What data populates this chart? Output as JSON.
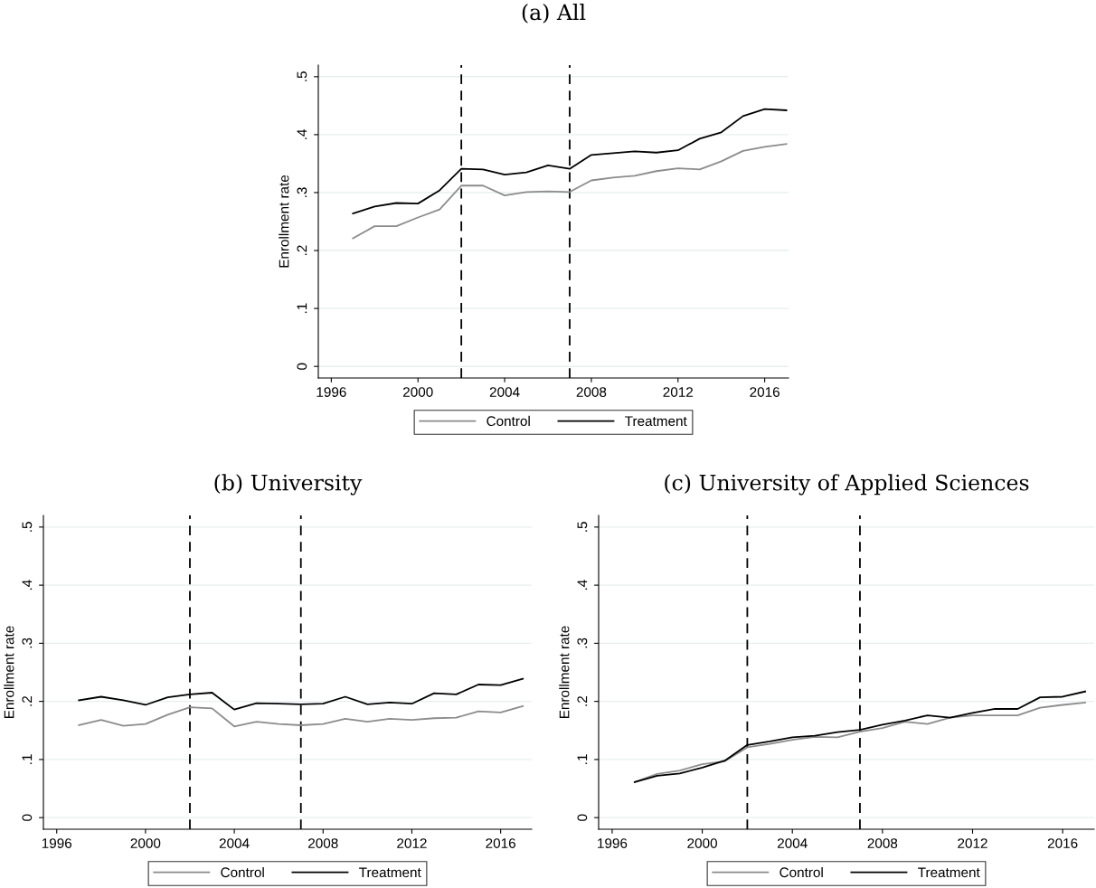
{
  "chart_data": [
    {
      "type": "line",
      "title": "(a) All",
      "ylabel": "Enrollment rate",
      "x": [
        1997,
        1998,
        1999,
        2000,
        2001,
        2002,
        2003,
        2004,
        2005,
        2006,
        2007,
        2008,
        2009,
        2010,
        2011,
        2012,
        2013,
        2014,
        2015,
        2016,
        2017
      ],
      "series": [
        {
          "name": "Control",
          "color": "#8c8c8c",
          "values": [
            0.221,
            0.242,
            0.242,
            0.257,
            0.271,
            0.312,
            0.312,
            0.295,
            0.301,
            0.302,
            0.301,
            0.321,
            0.326,
            0.329,
            0.337,
            0.342,
            0.34,
            0.354,
            0.372,
            0.379,
            0.384
          ]
        },
        {
          "name": "Treatment",
          "color": "#000000",
          "values": [
            0.264,
            0.276,
            0.282,
            0.281,
            0.304,
            0.341,
            0.34,
            0.331,
            0.335,
            0.347,
            0.341,
            0.365,
            0.368,
            0.371,
            0.369,
            0.373,
            0.393,
            0.404,
            0.432,
            0.444,
            0.442
          ]
        }
      ],
      "xlim": [
        1995.4,
        2017.1
      ],
      "ylim": [
        -0.02,
        0.52
      ],
      "xticks": [
        1996,
        2000,
        2004,
        2008,
        2012,
        2016
      ],
      "yticks": [
        0,
        {
          "value": 0.1,
          "label": ".1"
        },
        {
          "value": 0.2,
          "label": ".2"
        },
        {
          "value": 0.3,
          "label": ".3"
        },
        {
          "value": 0.4,
          "label": ".4"
        },
        {
          "value": 0.5,
          "label": ".5"
        }
      ],
      "ref_lines": [
        {
          "axis": "x",
          "value": 2002,
          "color": "#000000",
          "line_style": "dashed"
        },
        {
          "axis": "x",
          "value": 2007,
          "color": "#000000",
          "line_style": "dashed"
        }
      ],
      "grid": "y",
      "legend": "bottom",
      "line_style": "solid",
      "marker": "none"
    },
    {
      "type": "line",
      "title": "(b) University",
      "ylabel": "Enrollment rate",
      "x": [
        1997,
        1998,
        1999,
        2000,
        2001,
        2002,
        2003,
        2004,
        2005,
        2006,
        2007,
        2008,
        2009,
        2010,
        2011,
        2012,
        2013,
        2014,
        2015,
        2016,
        2017
      ],
      "series": [
        {
          "name": "Control",
          "color": "#8c8c8c",
          "values": [
            0.159,
            0.168,
            0.158,
            0.161,
            0.177,
            0.19,
            0.188,
            0.157,
            0.165,
            0.161,
            0.159,
            0.161,
            0.17,
            0.165,
            0.17,
            0.168,
            0.171,
            0.172,
            0.183,
            0.181,
            0.192
          ]
        },
        {
          "name": "Treatment",
          "color": "#000000",
          "values": [
            0.202,
            0.208,
            0.202,
            0.194,
            0.207,
            0.212,
            0.215,
            0.186,
            0.197,
            0.196,
            0.195,
            0.196,
            0.208,
            0.195,
            0.198,
            0.196,
            0.214,
            0.212,
            0.229,
            0.228,
            0.239
          ]
        }
      ],
      "xlim": [
        1995.4,
        2017.4
      ],
      "ylim": [
        -0.02,
        0.52
      ],
      "xticks": [
        1996,
        2000,
        2004,
        2008,
        2012,
        2016
      ],
      "yticks": [
        0,
        {
          "value": 0.1,
          "label": ".1"
        },
        {
          "value": 0.2,
          "label": ".2"
        },
        {
          "value": 0.3,
          "label": ".3"
        },
        {
          "value": 0.4,
          "label": ".4"
        },
        {
          "value": 0.5,
          "label": ".5"
        }
      ],
      "ref_lines": [
        {
          "axis": "x",
          "value": 2002,
          "color": "#000000",
          "line_style": "dashed"
        },
        {
          "axis": "x",
          "value": 2007,
          "color": "#000000",
          "line_style": "dashed"
        }
      ],
      "grid": "y",
      "legend": "bottom",
      "line_style": "solid",
      "marker": "none"
    },
    {
      "type": "line",
      "title": "(c) University of Applied Sciences",
      "ylabel": "Enrollment rate",
      "x": [
        1997,
        1998,
        1999,
        2000,
        2001,
        2002,
        2003,
        2004,
        2005,
        2006,
        2007,
        2008,
        2009,
        2010,
        2011,
        2012,
        2013,
        2014,
        2015,
        2016,
        2017
      ],
      "series": [
        {
          "name": "Control",
          "color": "#8c8c8c",
          "values": [
            0.061,
            0.075,
            0.081,
            0.092,
            0.097,
            0.121,
            0.127,
            0.134,
            0.139,
            0.138,
            0.148,
            0.154,
            0.165,
            0.161,
            0.172,
            0.176,
            0.176,
            0.176,
            0.189,
            0.194,
            0.198
          ]
        },
        {
          "name": "Treatment",
          "color": "#000000",
          "values": [
            0.061,
            0.072,
            0.076,
            0.086,
            0.098,
            0.125,
            0.131,
            0.138,
            0.141,
            0.147,
            0.151,
            0.16,
            0.167,
            0.176,
            0.172,
            0.18,
            0.187,
            0.187,
            0.207,
            0.208,
            0.217
          ]
        }
      ],
      "xlim": [
        1995.4,
        2017.4
      ],
      "ylim": [
        -0.02,
        0.52
      ],
      "xticks": [
        1996,
        2000,
        2004,
        2008,
        2012,
        2016
      ],
      "yticks": [
        0,
        {
          "value": 0.1,
          "label": ".1"
        },
        {
          "value": 0.2,
          "label": ".2"
        },
        {
          "value": 0.3,
          "label": ".3"
        },
        {
          "value": 0.4,
          "label": ".4"
        },
        {
          "value": 0.5,
          "label": ".5"
        }
      ],
      "ref_lines": [
        {
          "axis": "x",
          "value": 2002,
          "color": "#000000",
          "line_style": "dashed"
        },
        {
          "axis": "x",
          "value": 2007,
          "color": "#000000",
          "line_style": "dashed"
        }
      ],
      "grid": "y",
      "legend": "bottom",
      "line_style": "solid",
      "marker": "none"
    }
  ]
}
